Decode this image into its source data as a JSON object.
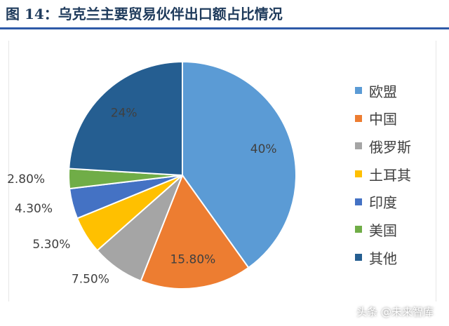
{
  "page": {
    "title": "图 14：乌克兰主要贸易伙伴出口额占比情况",
    "watermark": "头条 @未来智库"
  },
  "chart_data": {
    "type": "pie",
    "title": "图 14：乌克兰主要贸易伙伴出口额占比情况",
    "slices": [
      {
        "label": "欧盟",
        "value": 40.0,
        "display": "40%",
        "color": "#5b9bd5"
      },
      {
        "label": "中国",
        "value": 15.8,
        "display": "15.80%",
        "color": "#ed7d31"
      },
      {
        "label": "俄罗斯",
        "value": 7.5,
        "display": "7.50%",
        "color": "#a5a5a5"
      },
      {
        "label": "土耳其",
        "value": 5.3,
        "display": "5.30%",
        "color": "#ffc000"
      },
      {
        "label": "印度",
        "value": 4.3,
        "display": "4.30%",
        "color": "#4472c4"
      },
      {
        "label": "美国",
        "value": 2.8,
        "display": "2.80%",
        "color": "#70ad47"
      },
      {
        "label": "其他",
        "value": 24.0,
        "display": "24%",
        "color": "#255e91"
      }
    ],
    "start_angle_deg": 0,
    "direction": "clockwise",
    "legend": "right"
  }
}
